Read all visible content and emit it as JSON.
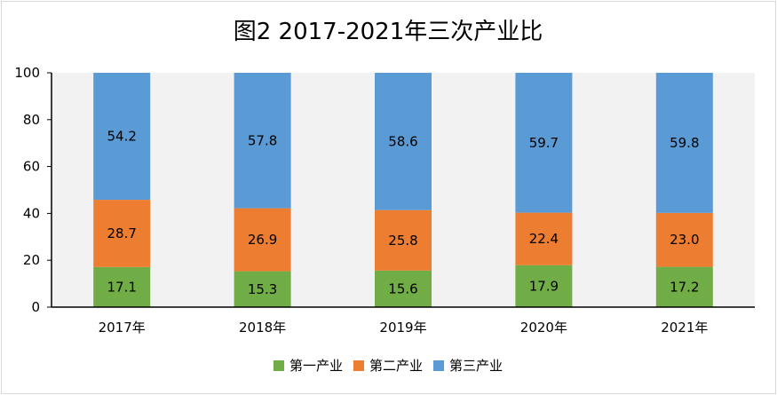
{
  "chart_data": {
    "type": "bar",
    "stacked": true,
    "title": "图2 2017-2021年三次产业比",
    "xlabel": "",
    "ylabel": "",
    "categories": [
      "2017年",
      "2018年",
      "2019年",
      "2020年",
      "2021年"
    ],
    "ylim": [
      0,
      100
    ],
    "yticks": [
      "0",
      "20",
      "40",
      "60",
      "80",
      "100"
    ],
    "grid": false,
    "plot_background": "#f2f2f2",
    "legend_position": "bottom",
    "series": [
      {
        "name": "第一产业",
        "color": "#70ad47",
        "values": [
          17.1,
          15.3,
          15.6,
          17.9,
          17.2
        ],
        "labels": [
          "17.1",
          "15.3",
          "15.6",
          "17.9",
          "17.2"
        ]
      },
      {
        "name": "第二产业",
        "color": "#ed7d31",
        "values": [
          28.7,
          26.9,
          25.8,
          22.4,
          23.0
        ],
        "labels": [
          "28.7",
          "26.9",
          "25.8",
          "22.4",
          "23.0"
        ]
      },
      {
        "name": "第三产业",
        "color": "#5b9bd5",
        "values": [
          54.2,
          57.8,
          58.6,
          59.7,
          59.8
        ],
        "labels": [
          "54.2",
          "57.8",
          "58.6",
          "59.7",
          "59.8"
        ]
      }
    ]
  }
}
